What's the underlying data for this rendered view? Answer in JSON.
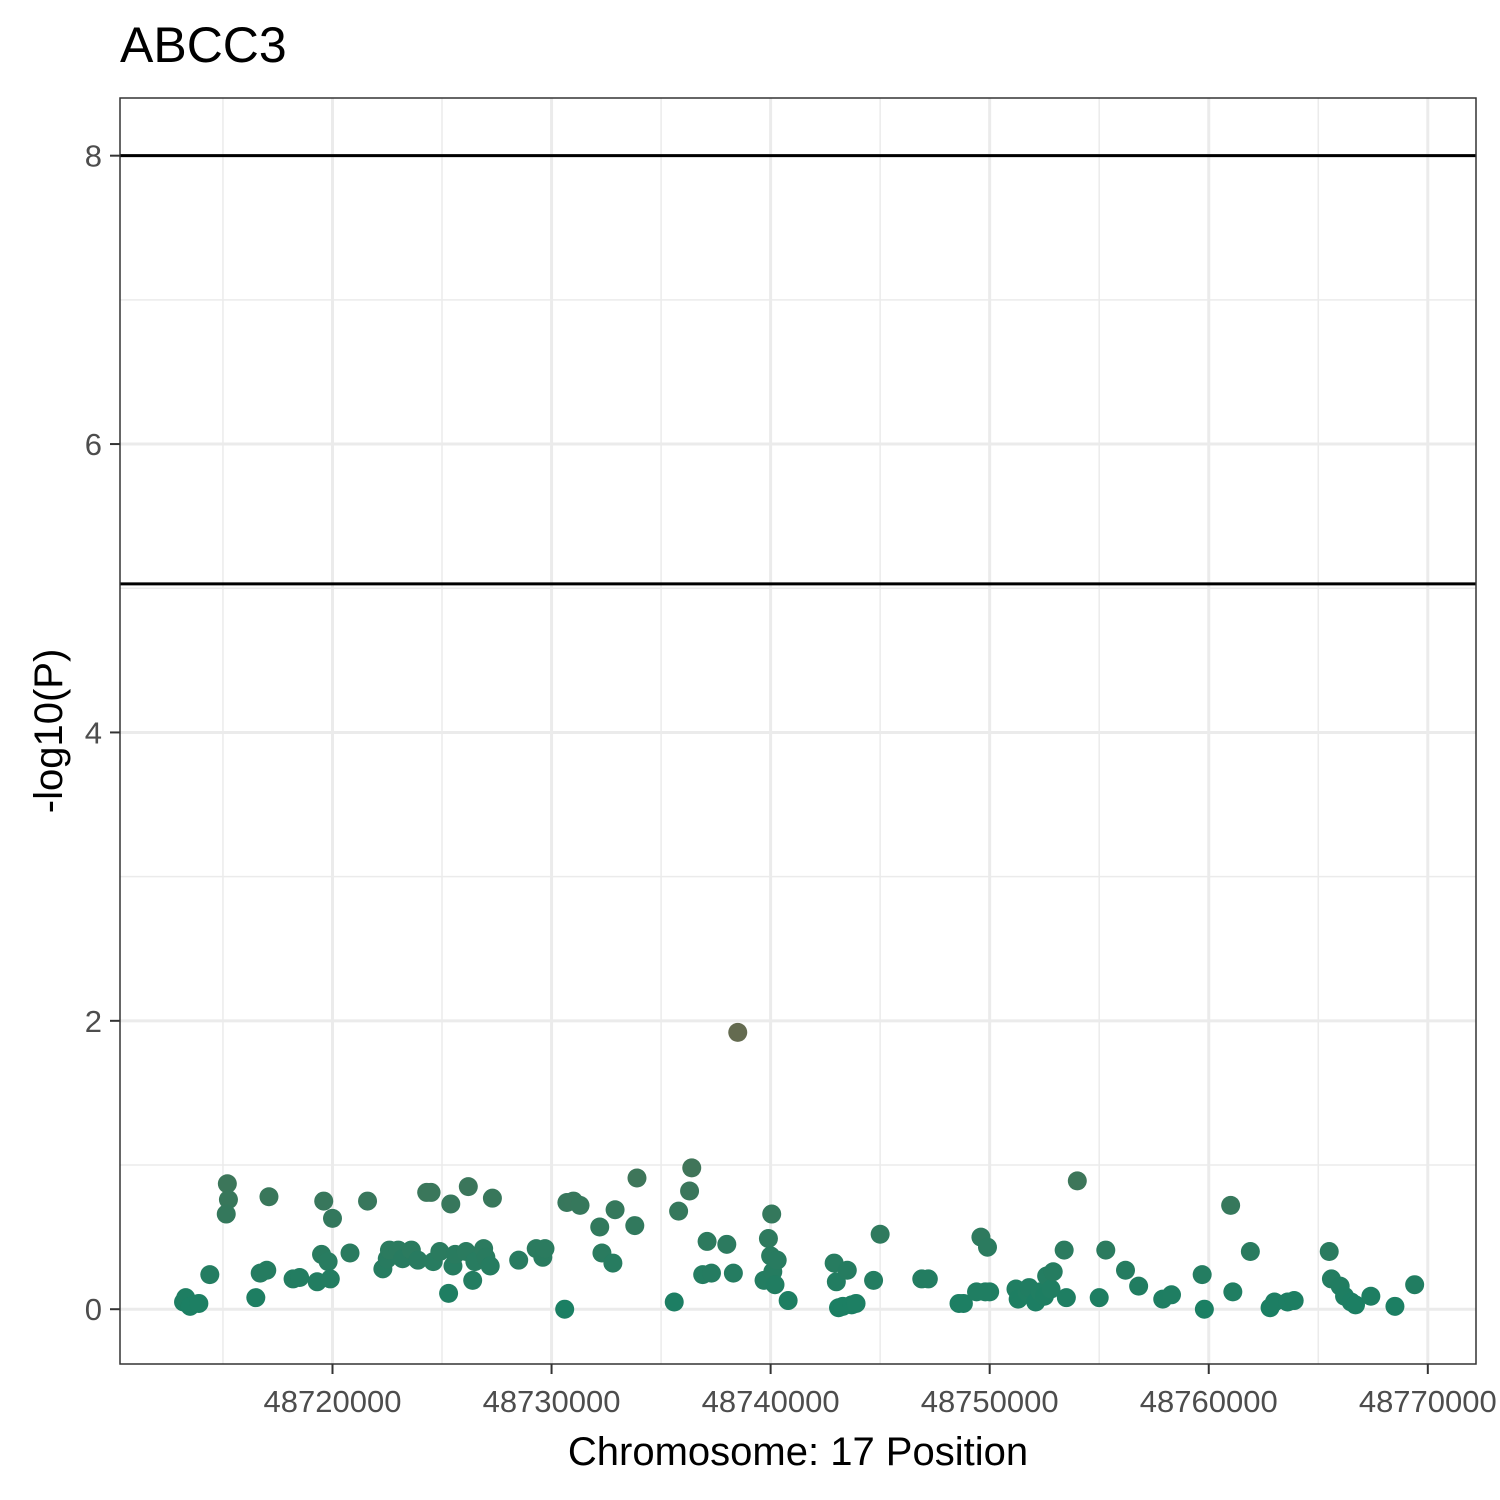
{
  "chart_data": {
    "type": "scatter",
    "title": "ABCC3",
    "xlabel": "Chromosome: 17 Position",
    "ylabel": "-log10(P)",
    "xlim": [
      48710300,
      48772200
    ],
    "ylim": [
      -0.38,
      8.4
    ],
    "x_ticks": [
      48720000,
      48730000,
      48740000,
      48750000,
      48760000,
      48770000
    ],
    "x_tick_labels": [
      "48720000",
      "48730000",
      "48740000",
      "48750000",
      "48760000",
      "48770000"
    ],
    "y_ticks": [
      0,
      2,
      4,
      6,
      8
    ],
    "y_tick_labels": [
      "0",
      "2",
      "4",
      "6",
      "8"
    ],
    "hlines": [
      8,
      5.03
    ],
    "grid": true,
    "colors": {
      "background": "#ffffff",
      "grid": "#ebebeb",
      "border": "#333333",
      "threshold_line": "#000000",
      "point_low": "#1b7f63",
      "point_high": "#646b50"
    },
    "series": [
      {
        "points": [
          [
            48713200,
            0.05
          ],
          [
            48713300,
            0.08
          ],
          [
            48713500,
            0.02
          ],
          [
            48713900,
            0.04
          ],
          [
            48714400,
            0.24
          ],
          [
            48715200,
            0.87
          ],
          [
            48715250,
            0.76
          ],
          [
            48715150,
            0.66
          ],
          [
            48716500,
            0.08
          ],
          [
            48716700,
            0.25
          ],
          [
            48717000,
            0.27
          ],
          [
            48717100,
            0.78
          ],
          [
            48718200,
            0.21
          ],
          [
            48718500,
            0.22
          ],
          [
            48719300,
            0.19
          ],
          [
            48719500,
            0.38
          ],
          [
            48719600,
            0.75
          ],
          [
            48719800,
            0.33
          ],
          [
            48719900,
            0.21
          ],
          [
            48720000,
            0.63
          ],
          [
            48720800,
            0.39
          ],
          [
            48721600,
            0.75
          ],
          [
            48722300,
            0.28
          ],
          [
            48722500,
            0.35
          ],
          [
            48722600,
            0.41
          ],
          [
            48723000,
            0.41
          ],
          [
            48723200,
            0.35
          ],
          [
            48723600,
            0.41
          ],
          [
            48723900,
            0.34
          ],
          [
            48724300,
            0.81
          ],
          [
            48724500,
            0.81
          ],
          [
            48724600,
            0.33
          ],
          [
            48724900,
            0.4
          ],
          [
            48725300,
            0.11
          ],
          [
            48725400,
            0.73
          ],
          [
            48725500,
            0.3
          ],
          [
            48725600,
            0.38
          ],
          [
            48726100,
            0.4
          ],
          [
            48726200,
            0.85
          ],
          [
            48726400,
            0.2
          ],
          [
            48726500,
            0.33
          ],
          [
            48726900,
            0.42
          ],
          [
            48727000,
            0.36
          ],
          [
            48727200,
            0.3
          ],
          [
            48727300,
            0.77
          ],
          [
            48728500,
            0.34
          ],
          [
            48729300,
            0.42
          ],
          [
            48729600,
            0.36
          ],
          [
            48729700,
            0.42
          ],
          [
            48730600,
            0.0
          ],
          [
            48730700,
            0.74
          ],
          [
            48731000,
            0.75
          ],
          [
            48731300,
            0.72
          ],
          [
            48732200,
            0.57
          ],
          [
            48732300,
            0.39
          ],
          [
            48732800,
            0.32
          ],
          [
            48732900,
            0.69
          ],
          [
            48733800,
            0.58
          ],
          [
            48733900,
            0.91
          ],
          [
            48735600,
            0.05
          ],
          [
            48735800,
            0.68
          ],
          [
            48736300,
            0.82
          ],
          [
            48736400,
            0.98
          ],
          [
            48736900,
            0.24
          ],
          [
            48737100,
            0.47
          ],
          [
            48737300,
            0.25
          ],
          [
            48738000,
            0.45
          ],
          [
            48738300,
            0.25
          ],
          [
            48738500,
            1.92
          ],
          [
            48739700,
            0.2
          ],
          [
            48739900,
            0.49
          ],
          [
            48740000,
            0.37
          ],
          [
            48740050,
            0.66
          ],
          [
            48740100,
            0.26
          ],
          [
            48740200,
            0.17
          ],
          [
            48740300,
            0.34
          ],
          [
            48740800,
            0.06
          ],
          [
            48742900,
            0.32
          ],
          [
            48743000,
            0.19
          ],
          [
            48743100,
            0.01
          ],
          [
            48743300,
            0.02
          ],
          [
            48743500,
            0.27
          ],
          [
            48743700,
            0.03
          ],
          [
            48743900,
            0.04
          ],
          [
            48744700,
            0.2
          ],
          [
            48745000,
            0.52
          ],
          [
            48746900,
            0.21
          ],
          [
            48747200,
            0.21
          ],
          [
            48748600,
            0.04
          ],
          [
            48748800,
            0.04
          ],
          [
            48749400,
            0.12
          ],
          [
            48749600,
            0.5
          ],
          [
            48749800,
            0.12
          ],
          [
            48749900,
            0.43
          ],
          [
            48750000,
            0.12
          ],
          [
            48751200,
            0.14
          ],
          [
            48751300,
            0.07
          ],
          [
            48751700,
            0.12
          ],
          [
            48751800,
            0.15
          ],
          [
            48752100,
            0.05
          ],
          [
            48752300,
            0.12
          ],
          [
            48752500,
            0.09
          ],
          [
            48752600,
            0.23
          ],
          [
            48752800,
            0.14
          ],
          [
            48752900,
            0.26
          ],
          [
            48753400,
            0.41
          ],
          [
            48753500,
            0.08
          ],
          [
            48754000,
            0.89
          ],
          [
            48755000,
            0.08
          ],
          [
            48755300,
            0.41
          ],
          [
            48756200,
            0.27
          ],
          [
            48756800,
            0.16
          ],
          [
            48757900,
            0.07
          ],
          [
            48758300,
            0.1
          ],
          [
            48759700,
            0.24
          ],
          [
            48759800,
            0.0
          ],
          [
            48761000,
            0.72
          ],
          [
            48761100,
            0.12
          ],
          [
            48761900,
            0.4
          ],
          [
            48762800,
            0.01
          ],
          [
            48763000,
            0.05
          ],
          [
            48763600,
            0.05
          ],
          [
            48763900,
            0.06
          ],
          [
            48765500,
            0.4
          ],
          [
            48765600,
            0.21
          ],
          [
            48766000,
            0.16
          ],
          [
            48766200,
            0.09
          ],
          [
            48766500,
            0.05
          ],
          [
            48766700,
            0.03
          ],
          [
            48767400,
            0.09
          ],
          [
            48768500,
            0.02
          ],
          [
            48769400,
            0.17
          ]
        ]
      }
    ]
  }
}
